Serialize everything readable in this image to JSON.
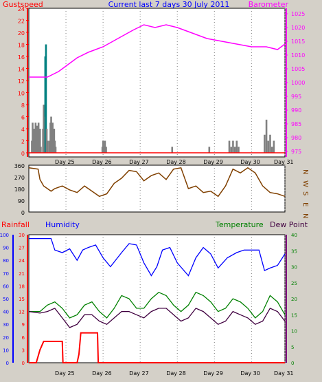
{
  "chart_data": [
    {
      "type": "line",
      "title": "Current last 7 days 30 July 2011",
      "left_axis": {
        "label": "Gustspeed",
        "min": 0,
        "max": 24,
        "ticks": [
          0,
          2,
          4,
          6,
          8,
          10,
          12,
          14,
          16,
          18,
          20,
          22,
          24
        ],
        "color": "#ff0000"
      },
      "right_axis": {
        "label": "Barometer",
        "min": 973,
        "max": 1027,
        "ticks": [
          975,
          980,
          985,
          990,
          995,
          1000,
          1005,
          1010,
          1015,
          1020,
          1025
        ],
        "color": "#ff00ff"
      },
      "x_labels": [
        "Day 25",
        "Day 26",
        "Day 27",
        "Day 28",
        "Day 29",
        "Day 30",
        "Day 31"
      ],
      "series": [
        {
          "name": "Gustspeed",
          "color": "#808080",
          "peak_color": "#008080",
          "axis": "left",
          "points": [
            [
              0.05,
              0
            ],
            [
              0.08,
              2
            ],
            [
              0.1,
              5
            ],
            [
              0.12,
              3
            ],
            [
              0.14,
              4
            ],
            [
              0.16,
              2
            ],
            [
              0.18,
              5
            ],
            [
              0.2,
              3
            ],
            [
              0.22,
              4.5
            ],
            [
              0.24,
              2
            ],
            [
              0.26,
              5
            ],
            [
              0.28,
              3
            ],
            [
              0.3,
              4
            ],
            [
              0.32,
              1
            ],
            [
              0.33,
              0
            ],
            [
              0.36,
              0
            ],
            [
              0.38,
              4
            ],
            [
              0.4,
              8
            ],
            [
              0.42,
              3
            ],
            [
              0.44,
              16
            ],
            [
              0.45,
              6
            ],
            [
              0.46,
              18
            ],
            [
              0.48,
              4
            ],
            [
              0.5,
              2
            ],
            [
              0.52,
              0
            ],
            [
              0.55,
              2
            ],
            [
              0.58,
              5
            ],
            [
              0.6,
              6
            ],
            [
              0.62,
              3
            ],
            [
              0.64,
              5
            ],
            [
              0.66,
              2
            ],
            [
              0.68,
              4
            ],
            [
              0.7,
              2
            ],
            [
              0.72,
              1
            ],
            [
              0.75,
              0
            ],
            [
              1.95,
              0
            ],
            [
              1.98,
              1
            ],
            [
              2.0,
              2
            ],
            [
              2.02,
              1
            ],
            [
              2.05,
              2
            ],
            [
              2.08,
              1
            ],
            [
              2.1,
              0
            ],
            [
              3.85,
              0
            ],
            [
              3.86,
              1
            ],
            [
              3.88,
              0
            ],
            [
              4.85,
              0
            ],
            [
              4.86,
              1
            ],
            [
              4.88,
              0
            ],
            [
              5.35,
              0
            ],
            [
              5.4,
              2
            ],
            [
              5.45,
              1
            ],
            [
              5.5,
              2
            ],
            [
              5.55,
              1
            ],
            [
              5.6,
              2
            ],
            [
              5.65,
              1
            ],
            [
              5.7,
              0
            ],
            [
              6.3,
              0
            ],
            [
              6.35,
              3
            ],
            [
              6.4,
              5.5
            ],
            [
              6.45,
              2
            ],
            [
              6.5,
              3
            ],
            [
              6.55,
              1
            ],
            [
              6.6,
              2
            ],
            [
              6.65,
              0
            ]
          ]
        },
        {
          "name": "Barometer",
          "color": "#ff00ff",
          "axis": "right",
          "points": [
            [
              0,
              1002
            ],
            [
              0.5,
              1002
            ],
            [
              0.8,
              1004
            ],
            [
              1.0,
              1006
            ],
            [
              1.3,
              1009
            ],
            [
              1.6,
              1011
            ],
            [
              2.0,
              1013
            ],
            [
              2.4,
              1016
            ],
            [
              2.8,
              1019
            ],
            [
              3.1,
              1021
            ],
            [
              3.4,
              1020
            ],
            [
              3.7,
              1021
            ],
            [
              4.0,
              1020
            ],
            [
              4.4,
              1018
            ],
            [
              4.8,
              1016
            ],
            [
              5.2,
              1015
            ],
            [
              5.6,
              1014
            ],
            [
              6.0,
              1013
            ],
            [
              6.4,
              1013
            ],
            [
              6.7,
              1012
            ],
            [
              6.9,
              1014
            ]
          ]
        },
        {
          "name": "Gust limit",
          "color": "#ff0000",
          "axis": "left",
          "points": [
            [
              0,
              0
            ],
            [
              6.9,
              0
            ]
          ]
        }
      ]
    },
    {
      "type": "line",
      "title": "",
      "left_axis": {
        "label": "",
        "min": 0,
        "max": 360,
        "ticks": [
          0,
          90,
          180,
          270,
          360
        ]
      },
      "right_axis": {
        "labels": [
          "N",
          "W",
          "S",
          "E",
          "N"
        ]
      },
      "x_labels": [
        "Day 25",
        "Day 26",
        "Day 27",
        "Day 28",
        "Day 29",
        "Day 30",
        "Day 31"
      ],
      "series": [
        {
          "name": "Wind direction",
          "color": "#804000",
          "points": [
            [
              0,
              340
            ],
            [
              0.25,
              330
            ],
            [
              0.3,
              250
            ],
            [
              0.4,
              200
            ],
            [
              0.5,
              180
            ],
            [
              0.6,
              160
            ],
            [
              0.7,
              180
            ],
            [
              0.9,
              200
            ],
            [
              1.1,
              170
            ],
            [
              1.3,
              150
            ],
            [
              1.5,
              200
            ],
            [
              1.7,
              160
            ],
            [
              1.9,
              120
            ],
            [
              2.1,
              140
            ],
            [
              2.3,
              220
            ],
            [
              2.5,
              260
            ],
            [
              2.7,
              320
            ],
            [
              2.9,
              310
            ],
            [
              3.1,
              240
            ],
            [
              3.3,
              280
            ],
            [
              3.5,
              300
            ],
            [
              3.7,
              250
            ],
            [
              3.9,
              330
            ],
            [
              4.1,
              340
            ],
            [
              4.3,
              180
            ],
            [
              4.5,
              200
            ],
            [
              4.7,
              150
            ],
            [
              4.9,
              160
            ],
            [
              5.1,
              120
            ],
            [
              5.3,
              200
            ],
            [
              5.5,
              330
            ],
            [
              5.7,
              300
            ],
            [
              5.9,
              340
            ],
            [
              6.1,
              300
            ],
            [
              6.3,
              200
            ],
            [
              6.5,
              150
            ],
            [
              6.7,
              140
            ],
            [
              6.9,
              120
            ]
          ]
        }
      ]
    },
    {
      "type": "line",
      "title": "",
      "labels": {
        "rainfall": "Rainfall",
        "humidity": "Humidity",
        "temperature": "Temperature",
        "dewpoint": "Dew Point"
      },
      "rain_axis": {
        "min": 0,
        "max": 30,
        "ticks": [
          0,
          3,
          6,
          9,
          12,
          15,
          18,
          21,
          24,
          27,
          30
        ],
        "color": "#ff0000"
      },
      "humidity_axis": {
        "min": 0,
        "max": 100,
        "ticks": [
          0,
          10,
          20,
          30,
          40,
          50,
          60,
          70,
          80,
          90,
          100
        ],
        "color": "#0000ff"
      },
      "temp_axis": {
        "min": 0,
        "max": 40,
        "ticks": [
          0,
          5,
          10,
          15,
          20,
          25,
          30,
          35,
          40
        ],
        "color": "#008000"
      },
      "x_labels": [
        "Day 25",
        "Day 26",
        "Day 27",
        "Day 28",
        "Day 29",
        "Day 30",
        "Day 31"
      ],
      "series": [
        {
          "name": "Humidity",
          "color": "#0000ff",
          "axis": "humidity",
          "points": [
            [
              0,
              97
            ],
            [
              0.6,
              97
            ],
            [
              0.7,
              88
            ],
            [
              0.9,
              86
            ],
            [
              1.1,
              89
            ],
            [
              1.3,
              80
            ],
            [
              1.45,
              88
            ],
            [
              1.6,
              90
            ],
            [
              1.8,
              92
            ],
            [
              2.0,
              82
            ],
            [
              2.2,
              75
            ],
            [
              2.5,
              86
            ],
            [
              2.7,
              93
            ],
            [
              2.9,
              92
            ],
            [
              3.1,
              78
            ],
            [
              3.3,
              68
            ],
            [
              3.45,
              75
            ],
            [
              3.6,
              88
            ],
            [
              3.8,
              90
            ],
            [
              4.0,
              78
            ],
            [
              4.3,
              68
            ],
            [
              4.5,
              82
            ],
            [
              4.7,
              90
            ],
            [
              4.9,
              85
            ],
            [
              5.1,
              74
            ],
            [
              5.35,
              82
            ],
            [
              5.6,
              86
            ],
            [
              5.8,
              88
            ],
            [
              6.2,
              88
            ],
            [
              6.35,
              72
            ],
            [
              6.5,
              74
            ],
            [
              6.7,
              76
            ],
            [
              6.9,
              85
            ]
          ]
        },
        {
          "name": "Temperature",
          "color": "#008000",
          "axis": "temp",
          "points": [
            [
              0,
              16
            ],
            [
              0.3,
              16
            ],
            [
              0.5,
              18
            ],
            [
              0.7,
              19
            ],
            [
              0.9,
              17
            ],
            [
              1.1,
              14
            ],
            [
              1.3,
              15
            ],
            [
              1.5,
              18
            ],
            [
              1.7,
              19
            ],
            [
              1.9,
              16
            ],
            [
              2.1,
              14
            ],
            [
              2.3,
              17
            ],
            [
              2.5,
              21
            ],
            [
              2.7,
              20
            ],
            [
              2.9,
              17
            ],
            [
              3.1,
              17
            ],
            [
              3.3,
              20
            ],
            [
              3.5,
              22
            ],
            [
              3.7,
              21
            ],
            [
              3.9,
              18
            ],
            [
              4.1,
              16
            ],
            [
              4.3,
              18
            ],
            [
              4.5,
              22
            ],
            [
              4.7,
              21
            ],
            [
              4.9,
              19
            ],
            [
              5.1,
              16
            ],
            [
              5.3,
              17
            ],
            [
              5.5,
              20
            ],
            [
              5.7,
              19
            ],
            [
              5.9,
              17
            ],
            [
              6.1,
              14
            ],
            [
              6.3,
              16
            ],
            [
              6.5,
              21
            ],
            [
              6.7,
              19
            ],
            [
              6.9,
              15
            ]
          ]
        },
        {
          "name": "Dew Point",
          "color": "#400040",
          "axis": "temp",
          "points": [
            [
              0,
              16
            ],
            [
              0.3,
              15.5
            ],
            [
              0.5,
              16
            ],
            [
              0.7,
              17
            ],
            [
              0.9,
              14
            ],
            [
              1.1,
              11
            ],
            [
              1.3,
              12
            ],
            [
              1.5,
              15
            ],
            [
              1.7,
              15
            ],
            [
              1.9,
              13
            ],
            [
              2.1,
              12
            ],
            [
              2.3,
              14
            ],
            [
              2.5,
              16
            ],
            [
              2.7,
              16
            ],
            [
              2.9,
              15
            ],
            [
              3.1,
              14
            ],
            [
              3.3,
              16
            ],
            [
              3.5,
              17
            ],
            [
              3.7,
              17
            ],
            [
              3.9,
              15
            ],
            [
              4.1,
              13
            ],
            [
              4.3,
              14
            ],
            [
              4.5,
              17
            ],
            [
              4.7,
              16
            ],
            [
              4.9,
              14
            ],
            [
              5.1,
              12
            ],
            [
              5.3,
              13
            ],
            [
              5.5,
              16
            ],
            [
              5.7,
              15
            ],
            [
              5.9,
              14
            ],
            [
              6.1,
              12
            ],
            [
              6.3,
              13
            ],
            [
              6.5,
              17
            ],
            [
              6.7,
              16
            ],
            [
              6.9,
              13
            ]
          ]
        },
        {
          "name": "Rainfall",
          "color": "#ff0000",
          "axis": "rain",
          "points": [
            [
              0,
              0
            ],
            [
              0.2,
              0
            ],
            [
              0.3,
              3
            ],
            [
              0.4,
              5
            ],
            [
              0.5,
              5
            ],
            [
              0.9,
              5
            ],
            [
              0.92,
              0
            ],
            [
              1.3,
              0
            ],
            [
              1.35,
              2
            ],
            [
              1.4,
              7
            ],
            [
              1.85,
              7
            ],
            [
              1.87,
              0
            ],
            [
              6.9,
              0
            ]
          ]
        }
      ]
    }
  ]
}
